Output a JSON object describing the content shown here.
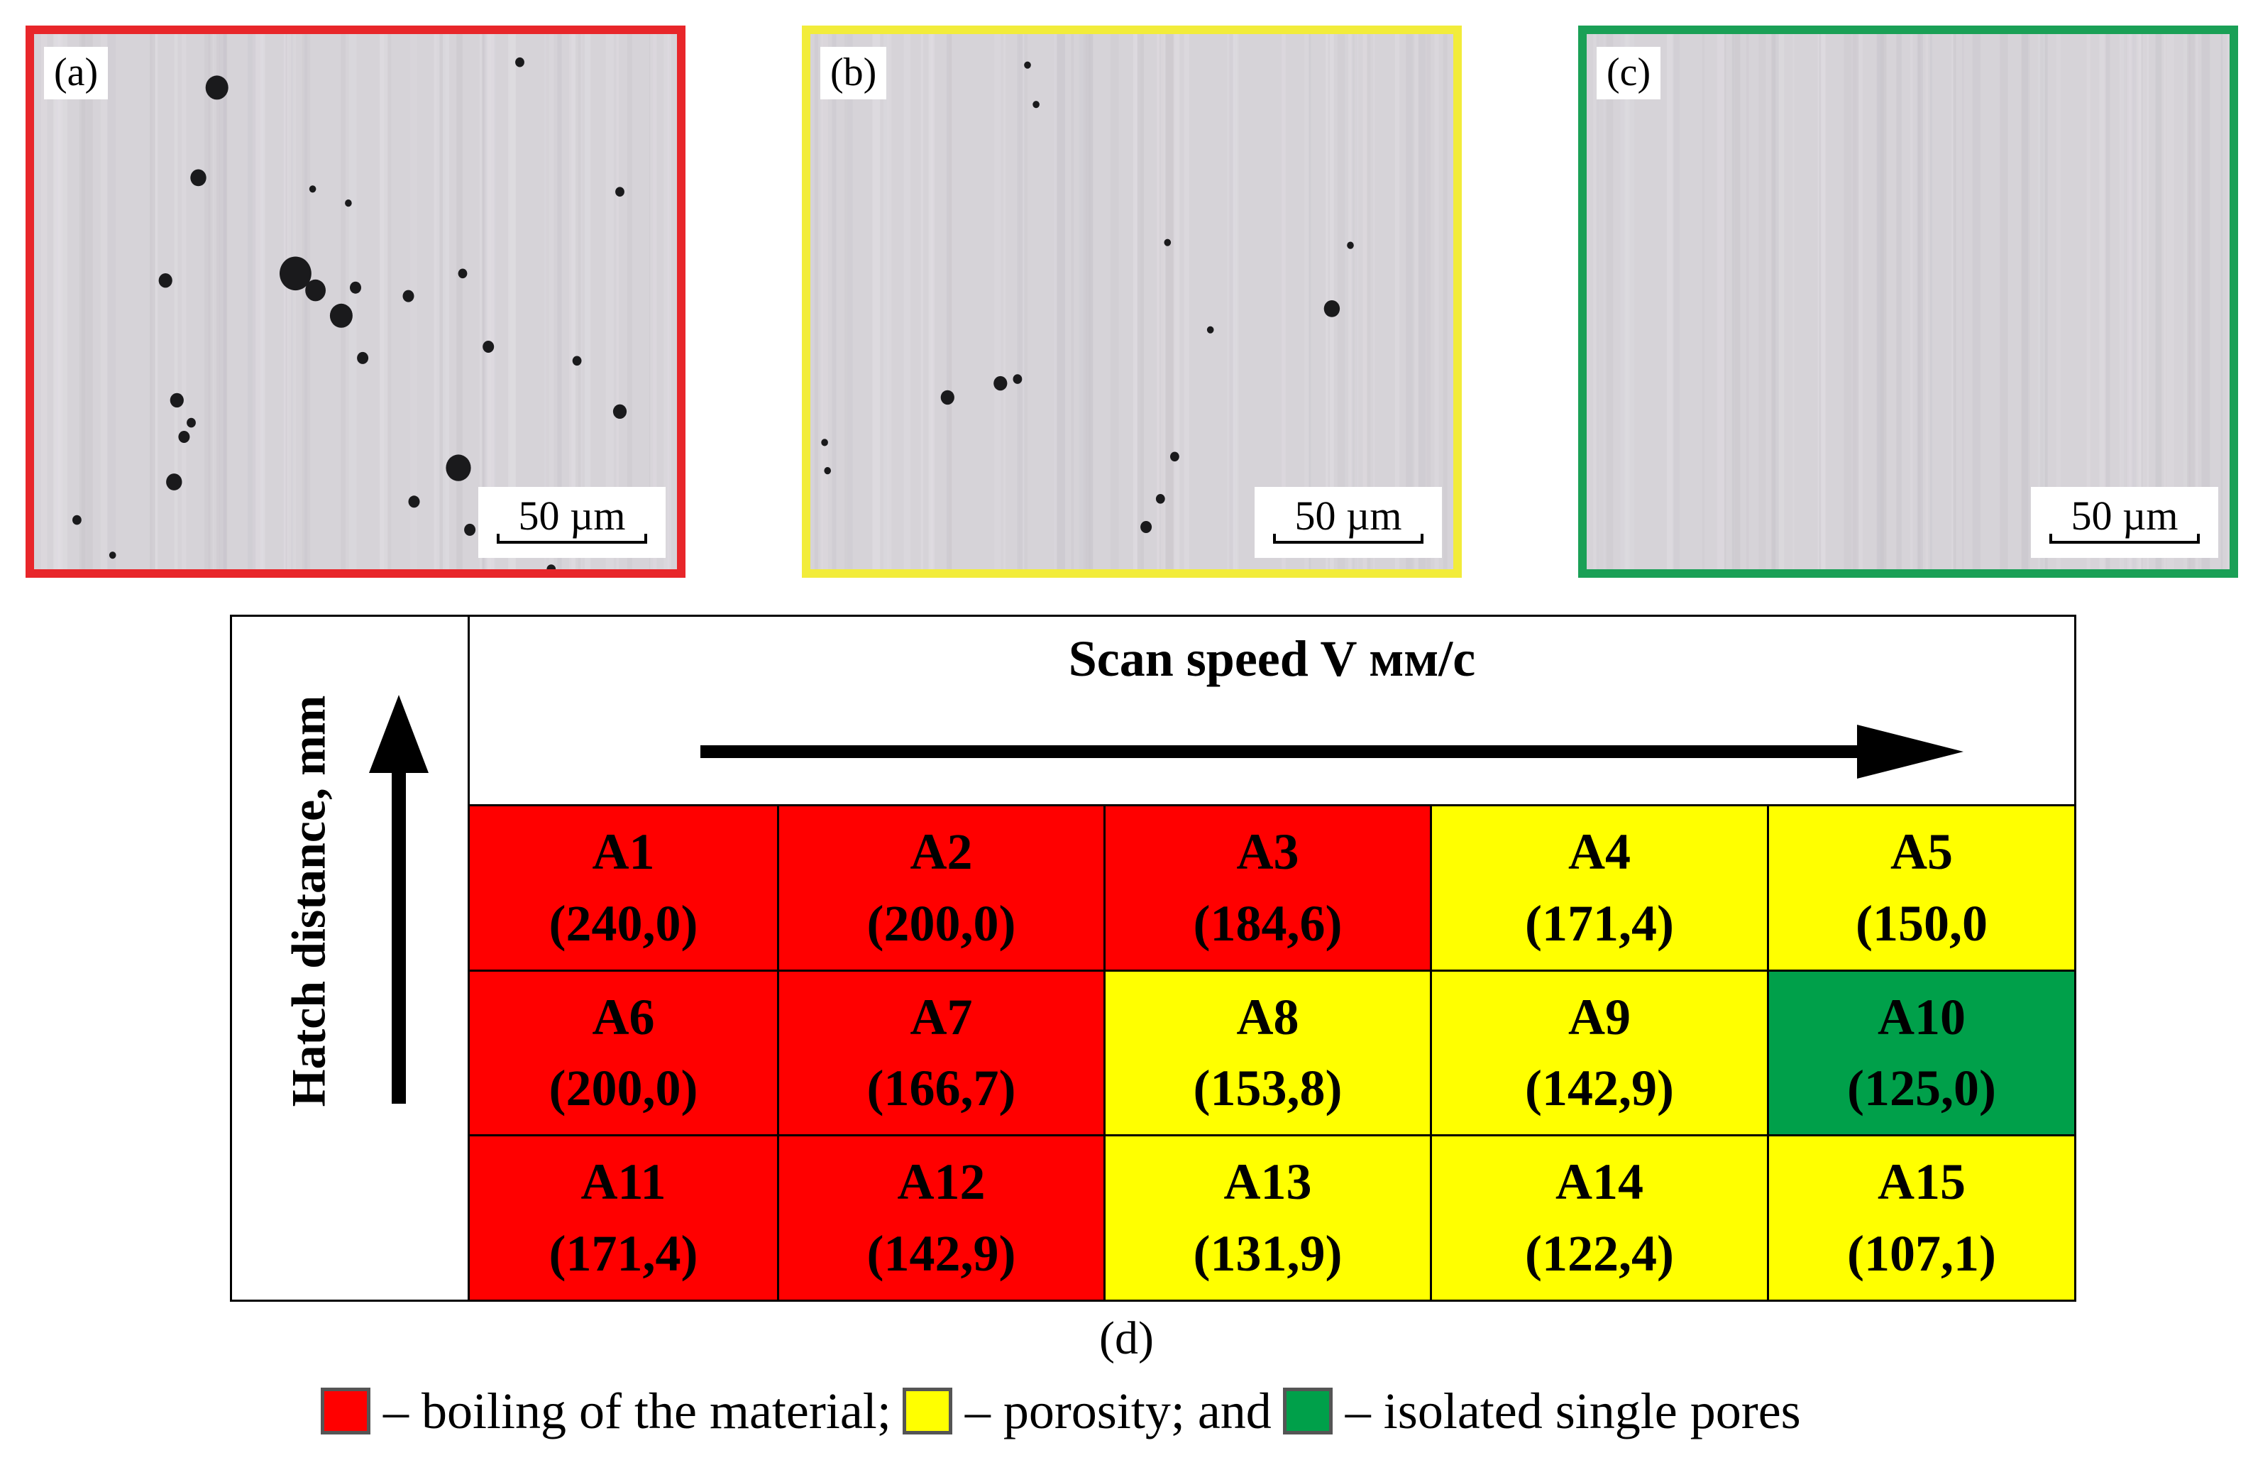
{
  "colors": {
    "boiling": "#ff0000",
    "porosity": "#ffff00",
    "isolated": "#00a04a",
    "frame_a": "#e8262a",
    "frame_b": "#f2ec3a",
    "frame_c": "#1aa056"
  },
  "panels": [
    {
      "label": "(a)",
      "scale": "50 µm",
      "pores": "many"
    },
    {
      "label": "(b)",
      "scale": "50 µm",
      "pores": "few"
    },
    {
      "label": "(c)",
      "scale": "50 µm",
      "pores": "none"
    }
  ],
  "table": {
    "x_axis_label": "Scan speed V мм/с",
    "y_axis_label": "Hatch distance, mm",
    "rows": [
      [
        {
          "id": "A1",
          "value": "(240,0)",
          "class": "boiling"
        },
        {
          "id": "A2",
          "value": "(200,0)",
          "class": "boiling"
        },
        {
          "id": "A3",
          "value": "(184,6)",
          "class": "boiling"
        },
        {
          "id": "A4",
          "value": "(171,4)",
          "class": "porosity"
        },
        {
          "id": "A5",
          "value": "(150,0",
          "class": "porosity"
        }
      ],
      [
        {
          "id": "A6",
          "value": "(200,0)",
          "class": "boiling"
        },
        {
          "id": "A7",
          "value": "(166,7)",
          "class": "boiling"
        },
        {
          "id": "A8",
          "value": "(153,8)",
          "class": "porosity"
        },
        {
          "id": "A9",
          "value": "(142,9)",
          "class": "porosity"
        },
        {
          "id": "A10",
          "value": "(125,0)",
          "class": "isolated"
        }
      ],
      [
        {
          "id": "A11",
          "value": "(171,4)",
          "class": "boiling"
        },
        {
          "id": "A12",
          "value": "(142,9)",
          "class": "boiling"
        },
        {
          "id": "A13",
          "value": "(131,9)",
          "class": "porosity"
        },
        {
          "id": "A14",
          "value": "(122,4)",
          "class": "porosity"
        },
        {
          "id": "A15",
          "value": "(107,1)",
          "class": "porosity"
        }
      ]
    ]
  },
  "caption": "(d)",
  "legend": {
    "boiling": "– boiling of the material;",
    "porosity": "– porosity; and",
    "isolated": "– isolated single pores"
  }
}
